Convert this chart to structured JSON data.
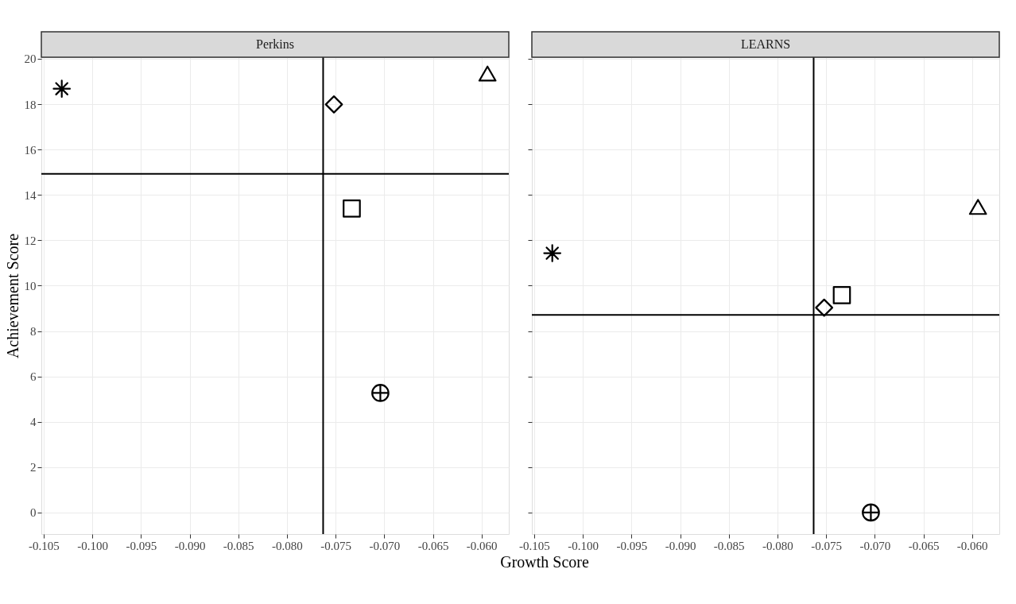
{
  "chart_data": [
    {
      "type": "scatter",
      "title": "Perkins",
      "xlabel": "Growth Score",
      "ylabel": "Achievement Score",
      "xlim": [
        -0.10524,
        -0.0572
      ],
      "ylim": [
        -0.95,
        20.07
      ],
      "xticks": [
        {
          "value": -0.105,
          "label": "-0.105"
        },
        {
          "value": -0.1,
          "label": "-0.100"
        },
        {
          "value": -0.095,
          "label": "-0.095"
        },
        {
          "value": -0.09,
          "label": "-0.090"
        },
        {
          "value": -0.085,
          "label": "-0.085"
        },
        {
          "value": -0.08,
          "label": "-0.080"
        },
        {
          "value": -0.075,
          "label": "-0.075"
        },
        {
          "value": -0.07,
          "label": "-0.070"
        },
        {
          "value": -0.065,
          "label": "-0.065"
        },
        {
          "value": -0.06,
          "label": "-0.060"
        }
      ],
      "yticks": [
        0,
        2,
        4,
        6,
        8,
        10,
        12,
        14,
        16,
        18,
        20
      ],
      "grid": true,
      "series": [
        {
          "color": "#000000",
          "marker": "cross",
          "x": [
            -0.10314
          ],
          "values": [
            18.68
          ]
        },
        {
          "color": "#000000",
          "marker": "diamond",
          "x": [
            -0.07517
          ],
          "values": [
            17.99
          ]
        },
        {
          "color": "#000000",
          "marker": "triangle",
          "x": [
            -0.05939
          ],
          "values": [
            19.35
          ]
        },
        {
          "color": "#000000",
          "marker": "square",
          "x": [
            -0.07334
          ],
          "values": [
            13.4
          ]
        },
        {
          "color": "#000000",
          "marker": "circle",
          "x": [
            -0.0704
          ],
          "values": [
            5.27
          ]
        }
      ],
      "ref_lines": [
        {
          "axis": "x",
          "value": -0.07628,
          "color": "#000000"
        },
        {
          "axis": "y",
          "value": 14.93,
          "color": "#000000"
        }
      ]
    },
    {
      "type": "scatter",
      "title": "LEARNS",
      "xlim": [
        -0.10524,
        -0.0572
      ],
      "ylim": [
        -0.95,
        20.07
      ],
      "xticks": [
        {
          "value": -0.105,
          "label": "-0.105"
        },
        {
          "value": -0.1,
          "label": "-0.100"
        },
        {
          "value": -0.095,
          "label": "-0.095"
        },
        {
          "value": -0.09,
          "label": "-0.090"
        },
        {
          "value": -0.085,
          "label": "-0.085"
        },
        {
          "value": -0.08,
          "label": "-0.080"
        },
        {
          "value": -0.075,
          "label": "-0.075"
        },
        {
          "value": -0.07,
          "label": "-0.070"
        },
        {
          "value": -0.065,
          "label": "-0.065"
        },
        {
          "value": -0.06,
          "label": "-0.060"
        }
      ],
      "yticks": [
        0,
        2,
        4,
        6,
        8,
        10,
        12,
        14,
        16,
        18,
        20
      ],
      "grid": true,
      "tick_labels": "x",
      "series": [
        {
          "color": "#000000",
          "marker": "cross",
          "x": [
            -0.10314
          ],
          "values": [
            11.43
          ]
        },
        {
          "color": "#000000",
          "marker": "diamond",
          "x": [
            -0.0752
          ],
          "values": [
            9.03
          ]
        },
        {
          "color": "#000000",
          "marker": "triangle",
          "x": [
            -0.05939
          ],
          "values": [
            13.47
          ]
        },
        {
          "color": "#000000",
          "marker": "square",
          "x": [
            -0.07338
          ],
          "values": [
            9.58
          ]
        },
        {
          "color": "#000000",
          "marker": "circle",
          "x": [
            -0.0704
          ],
          "values": [
            0
          ]
        }
      ],
      "ref_lines": [
        {
          "axis": "x",
          "value": -0.07628,
          "color": "#000000"
        },
        {
          "axis": "y",
          "value": 8.71,
          "color": "#000000"
        }
      ]
    }
  ]
}
